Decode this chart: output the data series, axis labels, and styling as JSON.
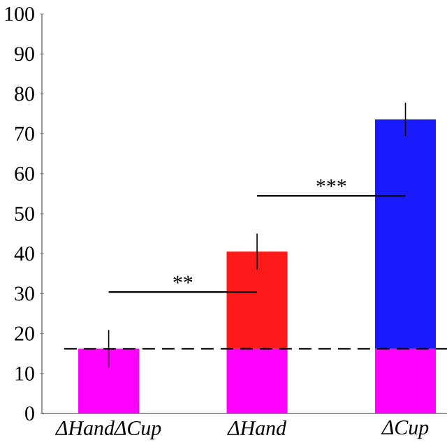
{
  "chart_data": {
    "type": "bar",
    "stacked": true,
    "categories": [
      "ΔHandΔCup",
      "ΔHand",
      "ΔCup"
    ],
    "series": [
      {
        "color": "#ff00ff",
        "values": [
          16.2,
          16.2,
          16.2
        ],
        "errors": [
          4.7,
          null,
          null
        ]
      },
      {
        "colors": [
          "#ff1a1a",
          "#ff1a1a",
          "#1a1aff"
        ],
        "values": [
          null,
          24.3,
          57.4
        ],
        "errors": [
          null,
          4.5,
          4.2
        ]
      }
    ],
    "ylim": [
      0,
      100
    ],
    "yticks": [
      0,
      10,
      20,
      30,
      40,
      50,
      60,
      70,
      80,
      90,
      100
    ],
    "ref_lines": [
      {
        "axis": "y",
        "value": 16.2,
        "line_style": "dashed"
      }
    ],
    "annotations": [
      "**",
      "***"
    ]
  }
}
